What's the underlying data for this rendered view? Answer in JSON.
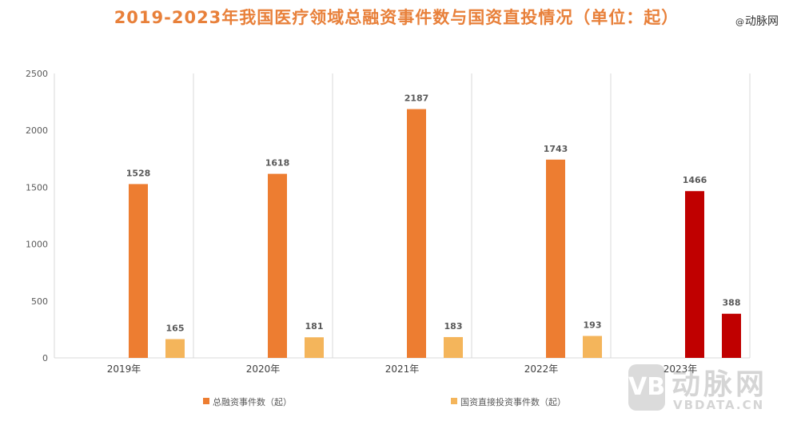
{
  "title": "2019-2023年我国医疗领域总融资事件数与国资直投情况（单位：起）",
  "brand": {
    "at": "@",
    "name": "动脉网"
  },
  "watermark": {
    "logo_text": "VB",
    "name_cn": "动脉网",
    "name_en": "VBDATA.CN"
  },
  "colors": {
    "total": "#ED7D31",
    "state": "#F4B55B",
    "highlight": "#C00000",
    "title": "#E8803A",
    "grid": "#D9D9D9",
    "label": "#595959"
  },
  "chart_data": {
    "type": "bar",
    "title": "2019-2023年我国医疗领域总融资事件数与国资直投情况（单位：起）",
    "categories": [
      "2019年",
      "2020年",
      "2021年",
      "2022年",
      "2023年"
    ],
    "series": [
      {
        "name": "总融资事件数（起）",
        "values": [
          1528,
          1618,
          2187,
          1743,
          1466
        ]
      },
      {
        "name": "国资直接投资事件数（起）",
        "values": [
          165,
          181,
          183,
          193,
          388
        ]
      }
    ],
    "highlight_category": "2023年",
    "ylim": [
      0,
      2500
    ],
    "yticks": [
      0,
      500,
      1000,
      1500,
      2000,
      2500
    ],
    "xlabel": "",
    "ylabel": "",
    "grid": "vertical category separators",
    "legend_position": "bottom"
  }
}
